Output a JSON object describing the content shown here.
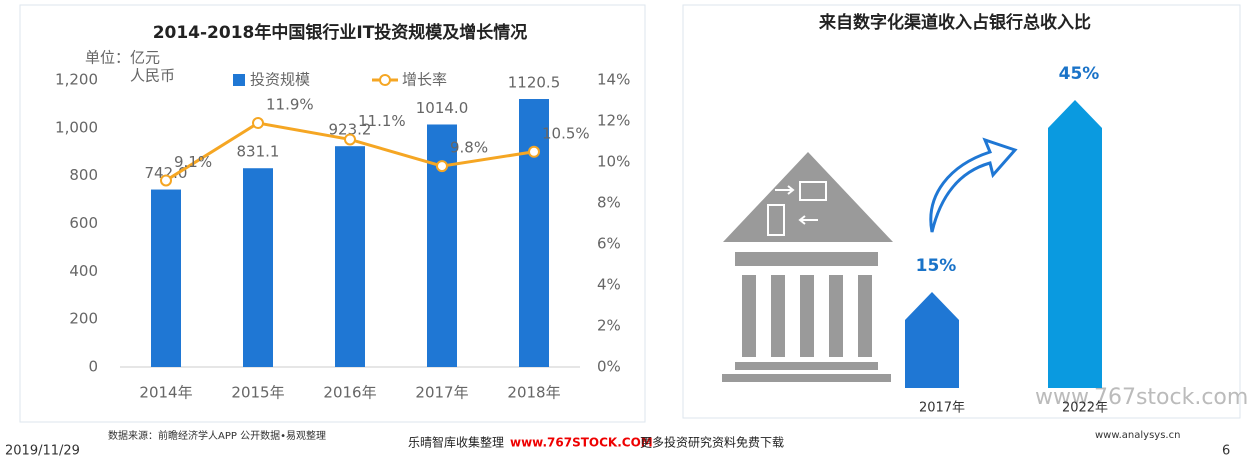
{
  "chart_data": [
    {
      "type": "bar",
      "title": "2014-2018年中国银行业IT投资规模及增长情况",
      "y_label": [
        "单位：亿元",
        "人民币"
      ],
      "categories": [
        "2014年",
        "2015年",
        "2016年",
        "2017年",
        "2018年"
      ],
      "series": [
        {
          "name": "投资规模",
          "color": "#1f77d4",
          "values": [
            742.0,
            831.1,
            923.2,
            1014.0,
            1120.5
          ],
          "value_labels": [
            "742.0",
            "831.1",
            "923.2",
            "1014.0",
            "1120.5"
          ]
        },
        {
          "name": "增长率",
          "type": "line",
          "axis": "y2",
          "color": "#f5a623",
          "values": [
            9.1,
            11.9,
            11.1,
            9.8,
            10.5
          ],
          "value_labels": [
            "9.1%",
            "11.9%",
            "11.1%",
            "9.8%",
            "10.5%"
          ]
        }
      ],
      "ylim": [
        0,
        1200
      ],
      "yticks": [
        0,
        200,
        400,
        600,
        800,
        {
          "value": 1000,
          "label": "1,000"
        },
        {
          "value": 1200,
          "label": "1,200"
        }
      ],
      "y2lim": [
        0,
        14
      ],
      "y2ticks": [
        {
          "value": 0,
          "label": "0%"
        },
        {
          "value": 2,
          "label": "2%"
        },
        {
          "value": 4,
          "label": "4%"
        },
        {
          "value": 6,
          "label": "6%"
        },
        {
          "value": 8,
          "label": "8%"
        },
        {
          "value": 10,
          "label": "10%"
        },
        {
          "value": 12,
          "label": "12%"
        },
        {
          "value": 14,
          "label": "14%"
        }
      ],
      "source": "数据来源：前瞻经济学人APP 公开数据•易观整理"
    },
    {
      "type": "arrow-bar",
      "title": "来自数字化渠道收入占银行总收入比",
      "categories": [
        "2017年",
        "2022年"
      ],
      "values": [
        15,
        45
      ],
      "value_labels": [
        "15%",
        "45%"
      ],
      "colors": [
        "#1f77d4",
        "#0a9ae0"
      ]
    }
  ],
  "footer": {
    "date": "2019/11/29",
    "site": "www.analysys.cn",
    "page": "6",
    "watermark": [
      "乐晴智库收集整理",
      "www.767STOCK.COM",
      "更多投资研究资料免费下载"
    ],
    "watermark2": "www.767stock.com"
  }
}
